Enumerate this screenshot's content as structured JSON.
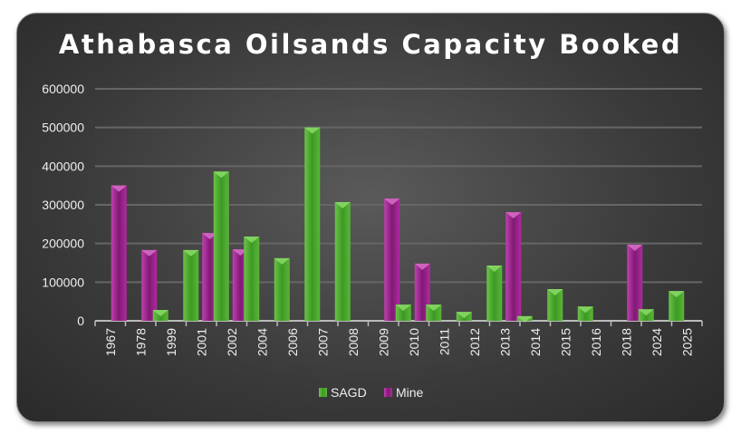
{
  "chart_data": {
    "type": "bar",
    "title": "Athabasca Oilsands Capacity Booked",
    "xlabel": "",
    "ylabel": "",
    "ylim": [
      0,
      600000
    ],
    "yticks": [
      0,
      100000,
      200000,
      300000,
      400000,
      500000,
      600000
    ],
    "grid": true,
    "legend_position": "bottom",
    "categories": [
      "1967",
      "1978",
      "1999",
      "2001",
      "2002",
      "2004",
      "2006",
      "2007",
      "2008",
      "2009",
      "2010",
      "2011",
      "2012",
      "2013",
      "2014",
      "2015",
      "2016",
      "2018",
      "2024",
      "2025"
    ],
    "series": [
      {
        "name": "SAGD",
        "color": "#4caf2e",
        "values": [
          0,
          0,
          28000,
          183000,
          386000,
          218000,
          162000,
          500000,
          307000,
          0,
          42000,
          42000,
          23000,
          143000,
          12000,
          82000,
          37000,
          0,
          30000,
          77000
        ]
      },
      {
        "name": "Mine",
        "color": "#b0279f",
        "values": [
          350000,
          183000,
          0,
          227000,
          185000,
          0,
          0,
          0,
          0,
          316000,
          148000,
          0,
          0,
          281000,
          0,
          0,
          0,
          197000,
          0,
          0
        ]
      }
    ]
  }
}
